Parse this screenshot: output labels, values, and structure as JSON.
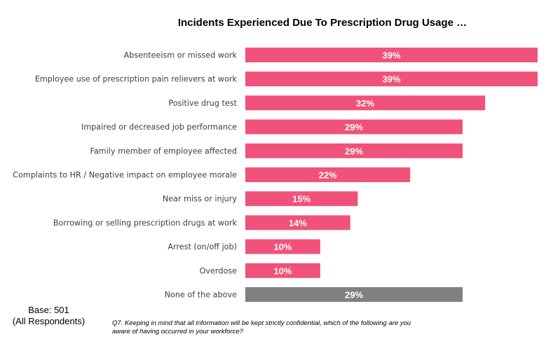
{
  "chart_data": {
    "type": "bar",
    "orientation": "horizontal",
    "title": "Incidents Experienced Due To Prescription Drug Usage …",
    "categories": [
      "Absenteeism or missed work",
      "Employee use of prescription pain relievers at work",
      "Positive drug test",
      "Impaired or decreased job performance",
      "Family member of employee affected",
      "Complaints to HR / Negative impact on employee morale",
      "Near miss or injury",
      "Borrowing or selling prescription drugs at work",
      "Arrest (on/off job)",
      "Overdose",
      "None of the above"
    ],
    "values": [
      39,
      39,
      32,
      29,
      29,
      22,
      15,
      14,
      10,
      10,
      29
    ],
    "value_labels": [
      "39%",
      "39%",
      "32%",
      "29%",
      "29%",
      "22%",
      "15%",
      "14%",
      "10%",
      "10%",
      "29%"
    ],
    "unit": "%",
    "xlim": [
      0,
      39
    ],
    "grid": false,
    "legend": "none",
    "colors": {
      "bar": "#f0527a",
      "none_bar": "#808080",
      "label_text": "#404040",
      "value_text": "#ffffff"
    }
  },
  "base": {
    "line1": "Base: 501",
    "line2": "(All Respondents)"
  },
  "footnote": {
    "line1": "Q7. Keeping in mind that all information will be kept strictly confidential, which of the following are you",
    "line2": "aware of having occurred in your workforce?"
  }
}
